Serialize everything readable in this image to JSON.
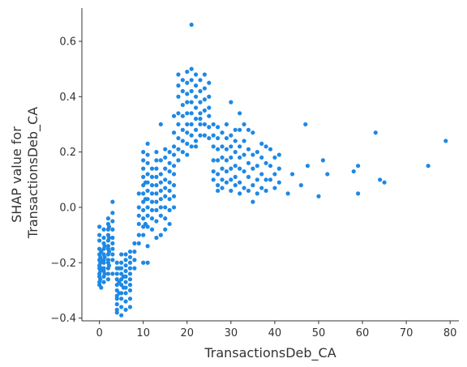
{
  "chart_data": {
    "type": "scatter",
    "xlabel": "TransactionsDeb_CA",
    "ylabel_lines": [
      "SHAP value for",
      "TransactionsDeb_CA"
    ],
    "xlim": [
      -4,
      82
    ],
    "ylim": [
      -0.41,
      0.72
    ],
    "xticks": [
      0,
      10,
      20,
      30,
      40,
      50,
      60,
      70,
      80
    ],
    "yticks": [
      -0.4,
      -0.2,
      0.0,
      0.2,
      0.4,
      0.6
    ],
    "ytick_labels": [
      "−0.4",
      "−0.2",
      "0.0",
      "0.2",
      "0.4",
      "0.6"
    ],
    "grid": false,
    "point_color": "#1e88e5",
    "points": [
      [
        0,
        -0.07
      ],
      [
        0,
        -0.1
      ],
      [
        0,
        -0.12
      ],
      [
        0,
        -0.15
      ],
      [
        0,
        -0.17
      ],
      [
        0,
        -0.19
      ],
      [
        0,
        -0.21
      ],
      [
        0,
        -0.22
      ],
      [
        0,
        -0.24
      ],
      [
        0,
        -0.25
      ],
      [
        0,
        -0.27
      ],
      [
        0,
        -0.28
      ],
      [
        0.2,
        -0.18
      ],
      [
        0.2,
        -0.2
      ],
      [
        0.2,
        -0.23
      ],
      [
        0.2,
        -0.26
      ],
      [
        0.4,
        -0.16
      ],
      [
        0.4,
        -0.19
      ],
      [
        0.4,
        -0.22
      ],
      [
        0.4,
        -0.29
      ],
      [
        1,
        -0.08
      ],
      [
        1,
        -0.11
      ],
      [
        1,
        -0.13
      ],
      [
        1,
        -0.15
      ],
      [
        1,
        -0.17
      ],
      [
        1,
        -0.19
      ],
      [
        1,
        -0.2
      ],
      [
        1,
        -0.22
      ],
      [
        1,
        -0.23
      ],
      [
        1,
        -0.25
      ],
      [
        1,
        -0.27
      ],
      [
        1.2,
        -0.14
      ],
      [
        1.2,
        -0.18
      ],
      [
        1.2,
        -0.24
      ],
      [
        2,
        -0.04
      ],
      [
        2,
        -0.06
      ],
      [
        2,
        -0.08
      ],
      [
        2,
        -0.1
      ],
      [
        2,
        -0.12
      ],
      [
        2,
        -0.14
      ],
      [
        2,
        -0.15
      ],
      [
        2,
        -0.17
      ],
      [
        2,
        -0.19
      ],
      [
        2,
        -0.2
      ],
      [
        2,
        -0.22
      ],
      [
        2,
        -0.24
      ],
      [
        2,
        -0.26
      ],
      [
        2.2,
        -0.07
      ],
      [
        2.2,
        -0.11
      ],
      [
        2.2,
        -0.16
      ],
      [
        2.2,
        -0.21
      ],
      [
        3,
        0.02
      ],
      [
        3,
        -0.02
      ],
      [
        3,
        -0.05
      ],
      [
        3,
        -0.08
      ],
      [
        3,
        -0.11
      ],
      [
        3,
        -0.13
      ],
      [
        3,
        -0.15
      ],
      [
        3,
        -0.17
      ],
      [
        3,
        -0.19
      ],
      [
        3,
        -0.24
      ],
      [
        4,
        -0.2
      ],
      [
        4,
        -0.22
      ],
      [
        4,
        -0.24
      ],
      [
        4,
        -0.26
      ],
      [
        4,
        -0.28
      ],
      [
        4,
        -0.3
      ],
      [
        4,
        -0.32
      ],
      [
        4,
        -0.33
      ],
      [
        4,
        -0.35
      ],
      [
        4,
        -0.37
      ],
      [
        4,
        -0.38
      ],
      [
        4.5,
        -0.22
      ],
      [
        4.5,
        -0.27
      ],
      [
        4.5,
        -0.31
      ],
      [
        5,
        -0.17
      ],
      [
        5,
        -0.2
      ],
      [
        5,
        -0.22
      ],
      [
        5,
        -0.24
      ],
      [
        5,
        -0.26
      ],
      [
        5,
        -0.28
      ],
      [
        5,
        -0.31
      ],
      [
        5,
        -0.33
      ],
      [
        5,
        -0.36
      ],
      [
        5,
        -0.39
      ],
      [
        5.5,
        -0.25
      ],
      [
        5.5,
        -0.29
      ],
      [
        6,
        -0.17
      ],
      [
        6,
        -0.19
      ],
      [
        6,
        -0.21
      ],
      [
        6,
        -0.23
      ],
      [
        6,
        -0.25
      ],
      [
        6,
        -0.27
      ],
      [
        6,
        -0.29
      ],
      [
        6,
        -0.31
      ],
      [
        6,
        -0.34
      ],
      [
        6,
        -0.37
      ],
      [
        7,
        -0.16
      ],
      [
        7,
        -0.18
      ],
      [
        7,
        -0.2
      ],
      [
        7,
        -0.22
      ],
      [
        7,
        -0.24
      ],
      [
        7,
        -0.26
      ],
      [
        7,
        -0.28
      ],
      [
        7,
        -0.3
      ],
      [
        7,
        -0.33
      ],
      [
        7,
        -0.36
      ],
      [
        8,
        -0.13
      ],
      [
        8,
        -0.16
      ],
      [
        8,
        -0.19
      ],
      [
        8,
        -0.22
      ],
      [
        9,
        -0.1
      ],
      [
        9,
        -0.13
      ],
      [
        9,
        -0.03
      ],
      [
        9,
        0.0
      ],
      [
        9,
        0.05
      ],
      [
        9,
        -0.06
      ],
      [
        10,
        0.2
      ],
      [
        10,
        0.17
      ],
      [
        10,
        0.14
      ],
      [
        10,
        0.11
      ],
      [
        10,
        0.08
      ],
      [
        10,
        0.05
      ],
      [
        10,
        0.02
      ],
      [
        10,
        -0.01
      ],
      [
        10,
        -0.04
      ],
      [
        10,
        -0.07
      ],
      [
        10,
        -0.1
      ],
      [
        10,
        -0.2
      ],
      [
        10.5,
        0.03
      ],
      [
        10.5,
        0.09
      ],
      [
        10.5,
        -0.06
      ],
      [
        11,
        0.23
      ],
      [
        11,
        0.19
      ],
      [
        11,
        0.16
      ],
      [
        11,
        0.12
      ],
      [
        11,
        0.09
      ],
      [
        11,
        0.06
      ],
      [
        11,
        0.03
      ],
      [
        11,
        0.0
      ],
      [
        11,
        -0.03
      ],
      [
        11,
        -0.07
      ],
      [
        11,
        -0.14
      ],
      [
        11,
        -0.2
      ],
      [
        12,
        0.14
      ],
      [
        12,
        0.11
      ],
      [
        12,
        0.08
      ],
      [
        12,
        0.05
      ],
      [
        12,
        0.02
      ],
      [
        12,
        -0.01
      ],
      [
        12,
        -0.04
      ],
      [
        12,
        -0.08
      ],
      [
        13,
        0.2
      ],
      [
        13,
        0.17
      ],
      [
        13,
        0.14
      ],
      [
        13,
        0.11
      ],
      [
        13,
        0.08
      ],
      [
        13,
        0.05
      ],
      [
        13,
        0.02
      ],
      [
        13,
        -0.01
      ],
      [
        13,
        -0.05
      ],
      [
        13,
        -0.11
      ],
      [
        14,
        0.3
      ],
      [
        14,
        0.17
      ],
      [
        14,
        0.12
      ],
      [
        14,
        0.09
      ],
      [
        14,
        0.06
      ],
      [
        14,
        0.03
      ],
      [
        14,
        0.0
      ],
      [
        14,
        -0.03
      ],
      [
        14,
        -0.1
      ],
      [
        15,
        0.21
      ],
      [
        15,
        0.18
      ],
      [
        15,
        0.14
      ],
      [
        15,
        0.1
      ],
      [
        15,
        0.07
      ],
      [
        15,
        0.04
      ],
      [
        15,
        0.0
      ],
      [
        15,
        -0.04
      ],
      [
        15,
        -0.08
      ],
      [
        16,
        0.2
      ],
      [
        16,
        0.16
      ],
      [
        16,
        0.13
      ],
      [
        16,
        0.09
      ],
      [
        16,
        0.06
      ],
      [
        16,
        0.03
      ],
      [
        16,
        -0.01
      ],
      [
        16,
        -0.06
      ],
      [
        17,
        0.33
      ],
      [
        17,
        0.27
      ],
      [
        17,
        0.22
      ],
      [
        17,
        0.19
      ],
      [
        17,
        0.15
      ],
      [
        17,
        0.12
      ],
      [
        17,
        0.08
      ],
      [
        17,
        0.04
      ],
      [
        17,
        0.0
      ],
      [
        18,
        0.48
      ],
      [
        18,
        0.44
      ],
      [
        18,
        0.4
      ],
      [
        18,
        0.34
      ],
      [
        18,
        0.3
      ],
      [
        18,
        0.25
      ],
      [
        18,
        0.21
      ],
      [
        18,
        0.17
      ],
      [
        19,
        0.46
      ],
      [
        19,
        0.42
      ],
      [
        19,
        0.37
      ],
      [
        19,
        0.33
      ],
      [
        19,
        0.28
      ],
      [
        19,
        0.24
      ],
      [
        19,
        0.2
      ],
      [
        20,
        0.49
      ],
      [
        20,
        0.45
      ],
      [
        20,
        0.41
      ],
      [
        20,
        0.38
      ],
      [
        20,
        0.34
      ],
      [
        20,
        0.3
      ],
      [
        20,
        0.27
      ],
      [
        20,
        0.23
      ],
      [
        20,
        0.19
      ],
      [
        21,
        0.66
      ],
      [
        21,
        0.5
      ],
      [
        21,
        0.46
      ],
      [
        21,
        0.42
      ],
      [
        21,
        0.38
      ],
      [
        21,
        0.34
      ],
      [
        21,
        0.3
      ],
      [
        21,
        0.26
      ],
      [
        21,
        0.22
      ],
      [
        22,
        0.48
      ],
      [
        22,
        0.44
      ],
      [
        22,
        0.4
      ],
      [
        22,
        0.36
      ],
      [
        22,
        0.32
      ],
      [
        22,
        0.28
      ],
      [
        22,
        0.24
      ],
      [
        22,
        0.22
      ],
      [
        23,
        0.46
      ],
      [
        23,
        0.42
      ],
      [
        23,
        0.38
      ],
      [
        23,
        0.34
      ],
      [
        23,
        0.3
      ],
      [
        23,
        0.26
      ],
      [
        23,
        0.32
      ],
      [
        24,
        0.48
      ],
      [
        24,
        0.43
      ],
      [
        24,
        0.39
      ],
      [
        24,
        0.35
      ],
      [
        24,
        0.3
      ],
      [
        24,
        0.26
      ],
      [
        25,
        0.45
      ],
      [
        25,
        0.4
      ],
      [
        25,
        0.36
      ],
      [
        25,
        0.33
      ],
      [
        25,
        0.29
      ],
      [
        25,
        0.25
      ],
      [
        26,
        0.3
      ],
      [
        26,
        0.26
      ],
      [
        26,
        0.22
      ],
      [
        26,
        0.17
      ],
      [
        26,
        0.13
      ],
      [
        26,
        0.1
      ],
      [
        27,
        0.29
      ],
      [
        27,
        0.25
      ],
      [
        27,
        0.21
      ],
      [
        27,
        0.17
      ],
      [
        27,
        0.12
      ],
      [
        27,
        0.08
      ],
      [
        27,
        0.06
      ],
      [
        28,
        0.27
      ],
      [
        28,
        0.22
      ],
      [
        28,
        0.18
      ],
      [
        28,
        0.14
      ],
      [
        28,
        0.1
      ],
      [
        28,
        0.07
      ],
      [
        29,
        0.3
      ],
      [
        29,
        0.25
      ],
      [
        29,
        0.21
      ],
      [
        29,
        0.17
      ],
      [
        29,
        0.13
      ],
      [
        29,
        0.09
      ],
      [
        30,
        0.38
      ],
      [
        30,
        0.26
      ],
      [
        30,
        0.22
      ],
      [
        30,
        0.18
      ],
      [
        30,
        0.14
      ],
      [
        30,
        0.1
      ],
      [
        30,
        0.06
      ],
      [
        31,
        0.28
      ],
      [
        31,
        0.24
      ],
      [
        31,
        0.2
      ],
      [
        31,
        0.15
      ],
      [
        31,
        0.11
      ],
      [
        31,
        0.08
      ],
      [
        32,
        0.34
      ],
      [
        32,
        0.28
      ],
      [
        32,
        0.22
      ],
      [
        32,
        0.18
      ],
      [
        32,
        0.14
      ],
      [
        32,
        0.09
      ],
      [
        32,
        0.05
      ],
      [
        33,
        0.3
      ],
      [
        33,
        0.24
      ],
      [
        33,
        0.19
      ],
      [
        33,
        0.13
      ],
      [
        33,
        0.07
      ],
      [
        34,
        0.28
      ],
      [
        34,
        0.21
      ],
      [
        34,
        0.16
      ],
      [
        34,
        0.11
      ],
      [
        34,
        0.06
      ],
      [
        35,
        0.27
      ],
      [
        35,
        0.19
      ],
      [
        35,
        0.14
      ],
      [
        35,
        0.08
      ],
      [
        35,
        0.02
      ],
      [
        36,
        0.2
      ],
      [
        36,
        0.15
      ],
      [
        36,
        0.1
      ],
      [
        36,
        0.05
      ],
      [
        37,
        0.23
      ],
      [
        37,
        0.18
      ],
      [
        37,
        0.12
      ],
      [
        37,
        0.07
      ],
      [
        38,
        0.22
      ],
      [
        38,
        0.16
      ],
      [
        38,
        0.1
      ],
      [
        38,
        0.06
      ],
      [
        39,
        0.21
      ],
      [
        39,
        0.15
      ],
      [
        39,
        0.1
      ],
      [
        40,
        0.18
      ],
      [
        40,
        0.12
      ],
      [
        40,
        0.07
      ],
      [
        41,
        0.19
      ],
      [
        41,
        0.09
      ],
      [
        41,
        0.14
      ],
      [
        43,
        0.05
      ],
      [
        44,
        0.12
      ],
      [
        46,
        0.08
      ],
      [
        47,
        0.3
      ],
      [
        47.5,
        0.15
      ],
      [
        50,
        0.04
      ],
      [
        51,
        0.17
      ],
      [
        52,
        0.12
      ],
      [
        58,
        0.13
      ],
      [
        59,
        0.05
      ],
      [
        59,
        0.15
      ],
      [
        63,
        0.27
      ],
      [
        64,
        0.1
      ],
      [
        65,
        0.09
      ],
      [
        75,
        0.15
      ],
      [
        79,
        0.24
      ]
    ]
  }
}
